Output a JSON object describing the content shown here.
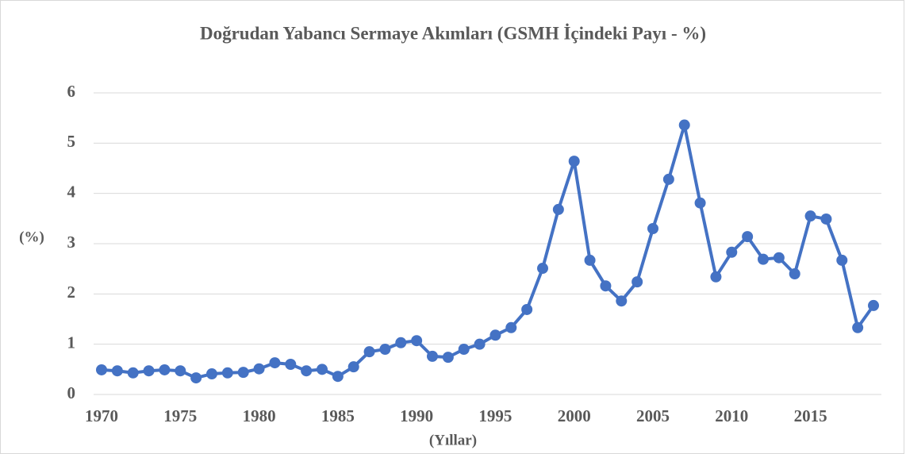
{
  "chart_data": {
    "type": "line",
    "title": "Doğrudan Yabancı Sermaye Akımları (GSMH İçindeki Payı - %)",
    "x_label": "(Yıllar)",
    "y_label": "(%)",
    "x": [
      1970,
      1971,
      1972,
      1973,
      1974,
      1975,
      1976,
      1977,
      1978,
      1979,
      1980,
      1981,
      1982,
      1983,
      1984,
      1985,
      1986,
      1987,
      1988,
      1989,
      1990,
      1991,
      1992,
      1993,
      1994,
      1995,
      1996,
      1997,
      1998,
      1999,
      2000,
      2001,
      2002,
      2003,
      2004,
      2005,
      2006,
      2007,
      2008,
      2009,
      2010,
      2011,
      2012,
      2013,
      2014,
      2015,
      2016,
      2017,
      2018,
      2019
    ],
    "series": [
      {
        "name": "(%)",
        "color": "#4472c4",
        "values": [
          0.49,
          0.47,
          0.43,
          0.47,
          0.49,
          0.47,
          0.33,
          0.41,
          0.43,
          0.44,
          0.51,
          0.63,
          0.6,
          0.47,
          0.5,
          0.36,
          0.55,
          0.85,
          0.9,
          1.03,
          1.07,
          0.76,
          0.74,
          0.9,
          1.0,
          1.18,
          1.33,
          1.69,
          2.51,
          3.68,
          4.64,
          2.67,
          2.16,
          1.86,
          2.24,
          3.3,
          4.28,
          5.36,
          3.81,
          2.34,
          2.83,
          3.14,
          2.69,
          2.72,
          2.4,
          3.55,
          3.49,
          2.67,
          1.33,
          1.77
        ]
      }
    ],
    "xlim": [
      1970,
      2019
    ],
    "xticks": [
      1970,
      1975,
      1980,
      1985,
      1990,
      1995,
      2000,
      2005,
      2010,
      2015
    ],
    "ylim": [
      0,
      6
    ],
    "yticks": [
      0,
      1,
      2,
      3,
      4,
      5,
      6
    ],
    "grid": true
  }
}
